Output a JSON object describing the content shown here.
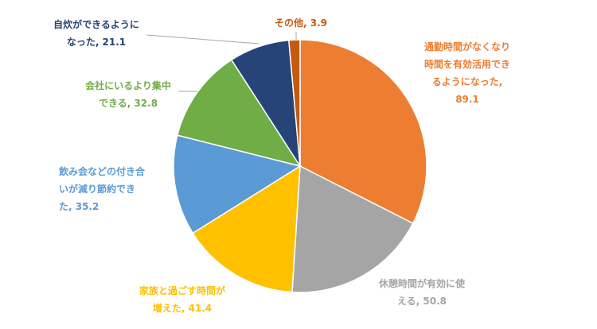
{
  "chart_data": {
    "type": "pie",
    "slices": [
      {
        "label": "通勤時間がなくなり時間を有効活用できるようになった",
        "value": 89.1,
        "color": "#ED7D31"
      },
      {
        "label": "休憩時間が有効に使える",
        "value": 50.8,
        "color": "#A5A5A5"
      },
      {
        "label": "家族と過ごす時間が増えた",
        "value": 41.4,
        "color": "#FFC000"
      },
      {
        "label": "飲み会などの付き合いが減り節約できた",
        "value": 35.2,
        "color": "#5B9BD5"
      },
      {
        "label": "会社にいるより集中できる",
        "value": 32.8,
        "color": "#70AD47"
      },
      {
        "label": "自炊ができるようになった",
        "value": 21.1,
        "color": "#264478"
      },
      {
        "label": "その他",
        "value": 3.9,
        "color": "#C55A11"
      }
    ],
    "labels_text": [
      {
        "name": "label-commute",
        "line1": "通勤時間がなくなり",
        "line2": "時間を有効活用でき",
        "line3": "るようになった,",
        "line4": "89.1",
        "color": "#ED7D31"
      },
      {
        "name": "label-break",
        "line1": "休憩時間が有効に使",
        "line2": "える, 50.8",
        "color": "#A5A5A5"
      },
      {
        "name": "label-family",
        "line1": "家族と過ごす時間が",
        "line2": "増えた, 41.4",
        "color": "#FFC000"
      },
      {
        "name": "label-drinking",
        "line1": "飲み会などの付き合",
        "line2": "いが減り節約でき",
        "line3": "た, 35.2",
        "color": "#5B9BD5"
      },
      {
        "name": "label-focus",
        "line1": "会社にいるより集中",
        "line2": "できる, 32.8",
        "color": "#70AD47"
      },
      {
        "name": "label-cooking",
        "line1": "自炊ができるように",
        "line2": "なった, 21.1",
        "color": "#264478"
      },
      {
        "name": "label-other",
        "line1": "その他, 3.9",
        "color": "#C55A11"
      }
    ]
  }
}
